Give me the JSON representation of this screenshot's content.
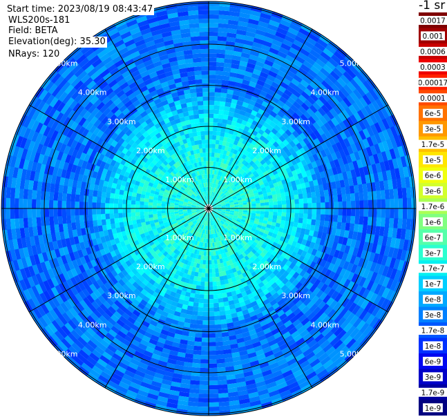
{
  "header": {
    "start_time": "Start time: 2023/08/19 08:43:47",
    "instrument": "WLS200s-181",
    "field": "Field: BETA",
    "elevation": "Elevation(deg): 35.30",
    "nrays": "NRays: 120"
  },
  "colorbar": {
    "unit": "-1 sr",
    "labels": [
      "0.0017",
      "0.001",
      "0.0006",
      "0.0003",
      "0.00017",
      "0.0001",
      "6e-5",
      "3e-5",
      "1.7e-5",
      "1e-5",
      "6e-6",
      "3e-6",
      "1.7e-6",
      "1e-6",
      "6e-7",
      "3e-7",
      "1.7e-7",
      "1e-7",
      "6e-8",
      "3e-8",
      "1.7e-8",
      "1e-8",
      "6e-9",
      "3e-9",
      "1.7e-9",
      "1e-9"
    ],
    "colors": [
      "#7f0000",
      "#a00000",
      "#c80000",
      "#ee0000",
      "#ff2000",
      "#ff4a00",
      "#ff7200",
      "#ff9800",
      "#ffbf00",
      "#ffe600",
      "#f0ff0c",
      "#d2ff2c",
      "#aaff55",
      "#80ff80",
      "#55ffaa",
      "#2cffd0",
      "#08f0f0",
      "#00cfff",
      "#00a8ff",
      "#0080ff",
      "#0058ff",
      "#0030ff",
      "#0008f0",
      "#0000c8",
      "#0000a0",
      "#000080"
    ]
  },
  "chart_data": {
    "type": "heatmap",
    "subtype": "polar-ppi",
    "title": "",
    "field": "BETA",
    "unit": "-1 sr",
    "n_rays": 120,
    "elevation_deg": 35.3,
    "range_rings_km": [
      1.0,
      2.0,
      3.0,
      4.0,
      5.0
    ],
    "ring_labels": [
      "1.00km",
      "2.00km",
      "3.00km",
      "4.00km",
      "5.00km"
    ],
    "radial_spokes_deg": [
      0,
      30,
      60,
      90,
      120,
      150,
      180,
      210,
      240,
      270,
      300,
      330
    ],
    "max_range_km": 6.3,
    "value_profile": {
      "range_km": [
        0.2,
        1.0,
        2.0,
        2.5,
        3.0,
        4.0,
        5.0,
        6.0
      ],
      "typical_beta": [
        "3e-7",
        "3e-7",
        "1.7e-7",
        "1e-7",
        "3e-8",
        "3e-8",
        "3e-8",
        "1.7e-8"
      ]
    },
    "colormap": "jet",
    "scale": "log"
  }
}
